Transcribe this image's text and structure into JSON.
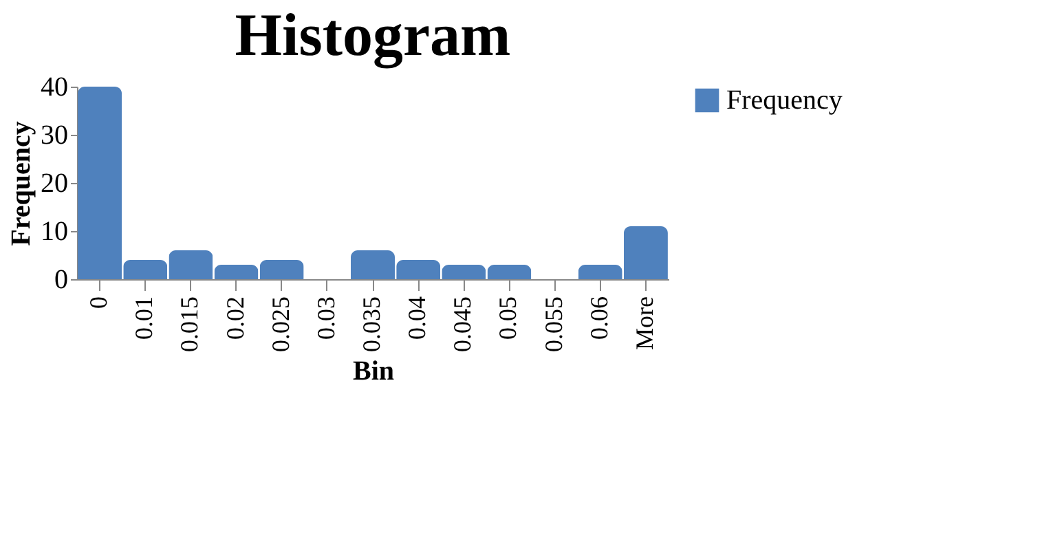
{
  "chart_data": {
    "type": "bar",
    "title": "Histogram",
    "xlabel": "Bin",
    "ylabel": "Frequency",
    "categories": [
      "0",
      "0.01",
      "0.015",
      "0.02",
      "0.025",
      "0.03",
      "0.035",
      "0.04",
      "0.045",
      "0.05",
      "0.055",
      "0.06",
      "More"
    ],
    "series": [
      {
        "name": "Frequency",
        "color": "#4f81bd",
        "values": [
          40,
          4,
          6,
          3,
          4,
          0,
          6,
          4,
          3,
          3,
          0,
          3,
          11
        ]
      }
    ],
    "ylim": [
      0,
      40
    ],
    "yticks": [
      0,
      10,
      20,
      30,
      40
    ],
    "grid": false,
    "legend": "right"
  }
}
